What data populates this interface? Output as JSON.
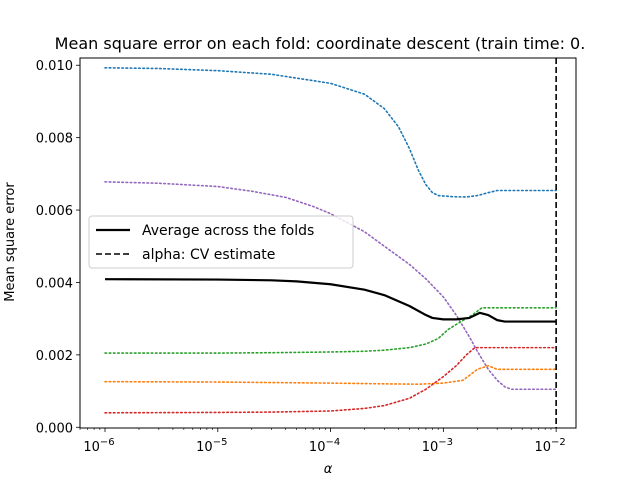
{
  "chart_data": {
    "type": "line",
    "title": "Mean square error on each fold: coordinate descent (train time: 0.",
    "xlabel": "α",
    "ylabel": "Mean square error",
    "x_scale": "log",
    "xlim": [
      6e-07,
      0.015
    ],
    "ylim": [
      -2e-05,
      0.0102
    ],
    "x_ticks": [
      {
        "value": 1e-06,
        "base": "10",
        "exp": "−6"
      },
      {
        "value": 1e-05,
        "base": "10",
        "exp": "−5"
      },
      {
        "value": 0.0001,
        "base": "10",
        "exp": "−4"
      },
      {
        "value": 0.001,
        "base": "10",
        "exp": "−3"
      },
      {
        "value": 0.01,
        "base": "10",
        "exp": "−2"
      }
    ],
    "y_ticks": [
      {
        "value": 0.0,
        "label": "0.000"
      },
      {
        "value": 0.002,
        "label": "0.002"
      },
      {
        "value": 0.004,
        "label": "0.004"
      },
      {
        "value": 0.006,
        "label": "0.006"
      },
      {
        "value": 0.008,
        "label": "0.008"
      },
      {
        "value": 0.01,
        "label": "0.010"
      }
    ],
    "grid": false,
    "legend_position": "center-left",
    "legend": [
      {
        "label": "Average across the folds",
        "style": "solid"
      },
      {
        "label": "alpha: CV estimate",
        "style": "dashed"
      }
    ],
    "cv_alpha": 0.01,
    "series": [
      {
        "style": "dotted",
        "color": "#1f77b4",
        "points": [
          [
            1e-06,
            0.00993
          ],
          [
            3e-06,
            0.00991
          ],
          [
            1e-05,
            0.00985
          ],
          [
            3e-05,
            0.00975
          ],
          [
            0.0001,
            0.0095
          ],
          [
            0.0002,
            0.0092
          ],
          [
            0.0003,
            0.0088
          ],
          [
            0.0004,
            0.0083
          ],
          [
            0.0005,
            0.0077
          ],
          [
            0.0006,
            0.0071
          ],
          [
            0.0007,
            0.0067
          ],
          [
            0.0008,
            0.00648
          ],
          [
            0.0009,
            0.0064
          ],
          [
            0.0012,
            0.00637
          ],
          [
            0.0016,
            0.00636
          ],
          [
            0.002,
            0.0064
          ],
          [
            0.0025,
            0.00648
          ],
          [
            0.003,
            0.00654
          ],
          [
            0.004,
            0.00654
          ],
          [
            0.01,
            0.00654
          ]
        ]
      },
      {
        "style": "dotted",
        "color": "#9467bd",
        "points": [
          [
            1e-06,
            0.00678
          ],
          [
            3e-06,
            0.00674
          ],
          [
            1e-05,
            0.00665
          ],
          [
            2e-05,
            0.00652
          ],
          [
            4e-05,
            0.00635
          ],
          [
            7e-05,
            0.0061
          ],
          [
            0.0001,
            0.0059
          ],
          [
            0.0002,
            0.0054
          ],
          [
            0.0003,
            0.005
          ],
          [
            0.0005,
            0.0045
          ],
          [
            0.0007,
            0.0041
          ],
          [
            0.001,
            0.0036
          ],
          [
            0.0013,
            0.0031
          ],
          [
            0.0017,
            0.0025
          ],
          [
            0.002,
            0.0021
          ],
          [
            0.0025,
            0.0016
          ],
          [
            0.003,
            0.0013
          ],
          [
            0.0035,
            0.00112
          ],
          [
            0.004,
            0.00105
          ],
          [
            0.01,
            0.00105
          ]
        ]
      },
      {
        "style": "dotted",
        "color": "#2ca02c",
        "points": [
          [
            1e-06,
            0.00205
          ],
          [
            1e-05,
            0.00205
          ],
          [
            3e-05,
            0.00206
          ],
          [
            0.0001,
            0.00208
          ],
          [
            0.0002,
            0.0021
          ],
          [
            0.0003,
            0.00213
          ],
          [
            0.0005,
            0.0022
          ],
          [
            0.0007,
            0.0023
          ],
          [
            0.0009,
            0.00245
          ],
          [
            0.0011,
            0.0027
          ],
          [
            0.0014,
            0.0029
          ],
          [
            0.0018,
            0.0031
          ],
          [
            0.0022,
            0.0033
          ],
          [
            0.003,
            0.0033
          ],
          [
            0.01,
            0.0033
          ]
        ]
      },
      {
        "style": "dotted",
        "color": "#ff7f0e",
        "points": [
          [
            1e-06,
            0.00126
          ],
          [
            1e-05,
            0.00125
          ],
          [
            0.0001,
            0.00122
          ],
          [
            0.0003,
            0.0012
          ],
          [
            0.0006,
            0.00119
          ],
          [
            0.001,
            0.00122
          ],
          [
            0.0015,
            0.0013
          ],
          [
            0.002,
            0.0016
          ],
          [
            0.0025,
            0.0017
          ],
          [
            0.003,
            0.0016
          ],
          [
            0.01,
            0.0016
          ]
        ]
      },
      {
        "style": "dotted",
        "color": "#d62728",
        "points": [
          [
            1e-06,
            0.0004
          ],
          [
            1e-05,
            0.00041
          ],
          [
            3e-05,
            0.00042
          ],
          [
            0.0001,
            0.00045
          ],
          [
            0.0002,
            0.00052
          ],
          [
            0.0003,
            0.0006
          ],
          [
            0.0005,
            0.0008
          ],
          [
            0.0007,
            0.00105
          ],
          [
            0.001,
            0.0014
          ],
          [
            0.0013,
            0.0017
          ],
          [
            0.0016,
            0.002
          ],
          [
            0.0019,
            0.0022
          ],
          [
            0.0022,
            0.0022
          ],
          [
            0.01,
            0.0022
          ]
        ]
      },
      {
        "style": "solid",
        "color": "#000000",
        "points": [
          [
            1e-06,
            0.00409
          ],
          [
            1e-05,
            0.00408
          ],
          [
            3e-05,
            0.00406
          ],
          [
            5e-05,
            0.00403
          ],
          [
            0.0001,
            0.00395
          ],
          [
            0.0002,
            0.0038
          ],
          [
            0.0003,
            0.00365
          ],
          [
            0.0005,
            0.00335
          ],
          [
            0.0007,
            0.0031
          ],
          [
            0.0008,
            0.00302
          ],
          [
            0.001,
            0.00298
          ],
          [
            0.0013,
            0.00298
          ],
          [
            0.0017,
            0.00302
          ],
          [
            0.0021,
            0.00316
          ],
          [
            0.0025,
            0.0031
          ],
          [
            0.003,
            0.00296
          ],
          [
            0.0035,
            0.00292
          ],
          [
            0.01,
            0.00292
          ]
        ]
      }
    ]
  }
}
